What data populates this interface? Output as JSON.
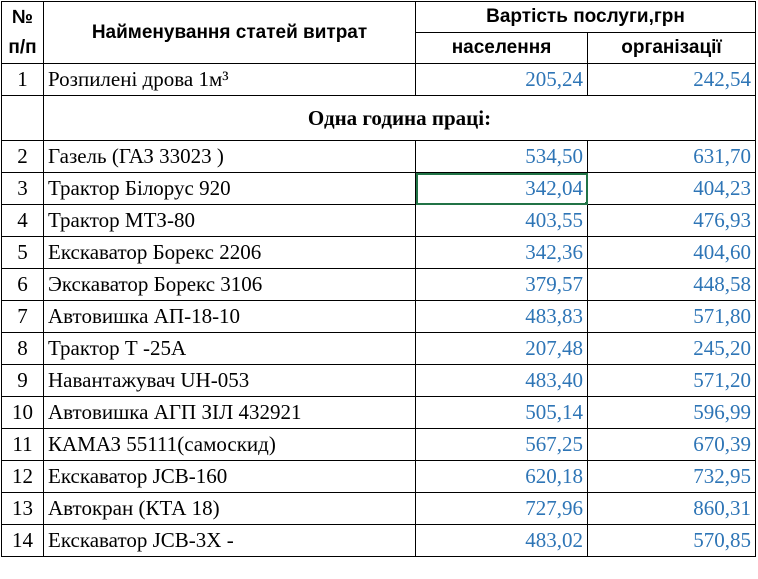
{
  "header": {
    "num_label": "№ п/п",
    "num_line1": "№",
    "num_line2": "п/п",
    "name_label": "Найменування статей витрат",
    "cost_label": "Вартість послуги,грн",
    "col_population": "населення",
    "col_organizations": "організації"
  },
  "row1": {
    "num": "1",
    "name": "Розпилені дрова 1м³",
    "population": "205,24",
    "organizations": "242,54"
  },
  "section_title": "Одна година праці:",
  "rows": [
    {
      "num": "2",
      "name": "Газель (ГАЗ 33023 )",
      "population": "534,50",
      "organizations": "631,70"
    },
    {
      "num": "3",
      "name": "Трактор Білорус 920",
      "population": "342,04",
      "organizations": "404,23"
    },
    {
      "num": "4",
      "name": "Трактор  МТЗ-80",
      "population": "403,55",
      "organizations": "476,93"
    },
    {
      "num": "5",
      "name": "Екскаватор  Борекс 2206",
      "population": "342,36",
      "organizations": "404,60"
    },
    {
      "num": "6",
      "name": "Экскаватор Борекс 3106",
      "population": "379,57",
      "organizations": "448,58"
    },
    {
      "num": "7",
      "name": "Автовишка АП-18-10",
      "population": "483,83",
      "organizations": "571,80"
    },
    {
      "num": "8",
      "name": "Трактор Т -25А",
      "population": "207,48",
      "organizations": "245,20"
    },
    {
      "num": "9",
      "name": "Навантажувач UH-053",
      "population": "483,40",
      "organizations": "571,20"
    },
    {
      "num": "10",
      "name": "Автовишка АГП ЗІЛ 432921",
      "population": "505,14",
      "organizations": "596,99"
    },
    {
      "num": "11",
      "name": "КАМАЗ 55111(самоскид)",
      "population": "567,25",
      "organizations": "670,39"
    },
    {
      "num": "12",
      "name": "Екскаватор JCB-160",
      "population": "620,18",
      "organizations": "732,95"
    },
    {
      "num": "13",
      "name": "Автокран (КТА 18)",
      "population": "727,96",
      "organizations": "860,31"
    },
    {
      "num": "14",
      "name": "Екскаватор JCB-3X -",
      "population": "483,02",
      "organizations": "570,85"
    }
  ],
  "colors": {
    "value_text": "#2e75b6",
    "selection": "#217346"
  }
}
